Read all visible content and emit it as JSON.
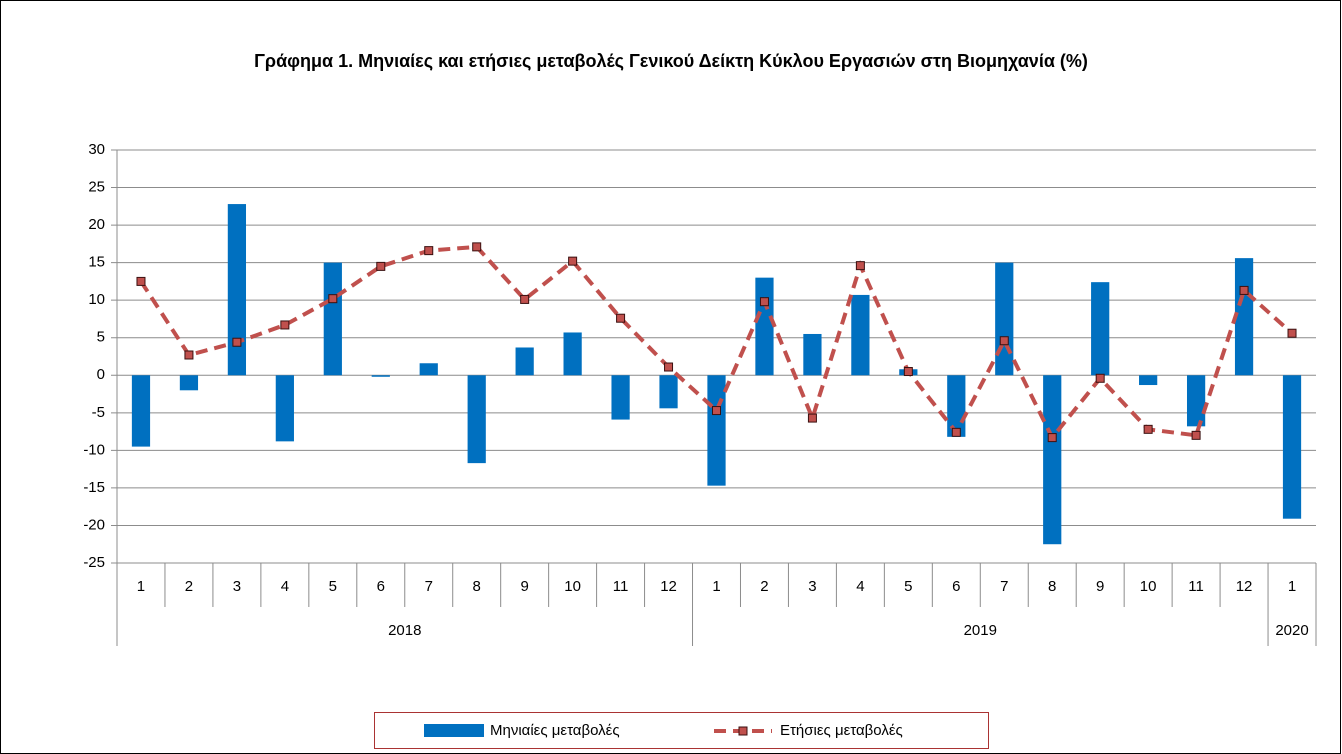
{
  "chart_data": {
    "type": "bar_line",
    "title": "Γράφημα 1. Μηνιαίες και ετήσιες μεταβολές  Γενικού Δείκτη Κύκλου Εργασιών στη Βιομηχανία (%)",
    "groups": [
      {
        "label": "2018",
        "categories": [
          "1",
          "2",
          "3",
          "4",
          "5",
          "6",
          "7",
          "8",
          "9",
          "10",
          "11",
          "12"
        ]
      },
      {
        "label": "2019",
        "categories": [
          "1",
          "2",
          "3",
          "4",
          "5",
          "6",
          "7",
          "8",
          "9",
          "10",
          "11",
          "12"
        ]
      },
      {
        "label": "2020",
        "categories": [
          "1"
        ]
      }
    ],
    "series": [
      {
        "name": "Μηνιαίες μεταβολές",
        "type": "bar",
        "color": "#0070c0",
        "values": [
          -9.5,
          -2,
          22.8,
          -8.8,
          15,
          -0.2,
          1.6,
          -11.7,
          3.7,
          5.7,
          -5.9,
          -4.4,
          -14.7,
          13,
          5.5,
          10.7,
          0.8,
          -8.2,
          15,
          -22.5,
          12.4,
          -1.3,
          -6.8,
          15.6,
          -19.1
        ]
      },
      {
        "name": "Ετήσιες μεταβολές",
        "type": "line",
        "color": "#c0504d",
        "dashed": true,
        "marker": "square",
        "values": [
          12.5,
          2.7,
          4.4,
          6.7,
          10.2,
          14.5,
          16.6,
          17.1,
          10.1,
          15.2,
          7.6,
          1.1,
          -4.7,
          9.8,
          -5.7,
          14.6,
          0.5,
          -7.6,
          4.6,
          -8.3,
          -0.4,
          -7.2,
          -8.0,
          11.3,
          5.6
        ]
      }
    ],
    "ylim": [
      -25,
      30
    ],
    "yticks": [
      -25,
      -20,
      -15,
      -10,
      -5,
      0,
      5,
      10,
      15,
      20,
      25,
      30
    ],
    "grid": true,
    "legend": "bottom"
  }
}
